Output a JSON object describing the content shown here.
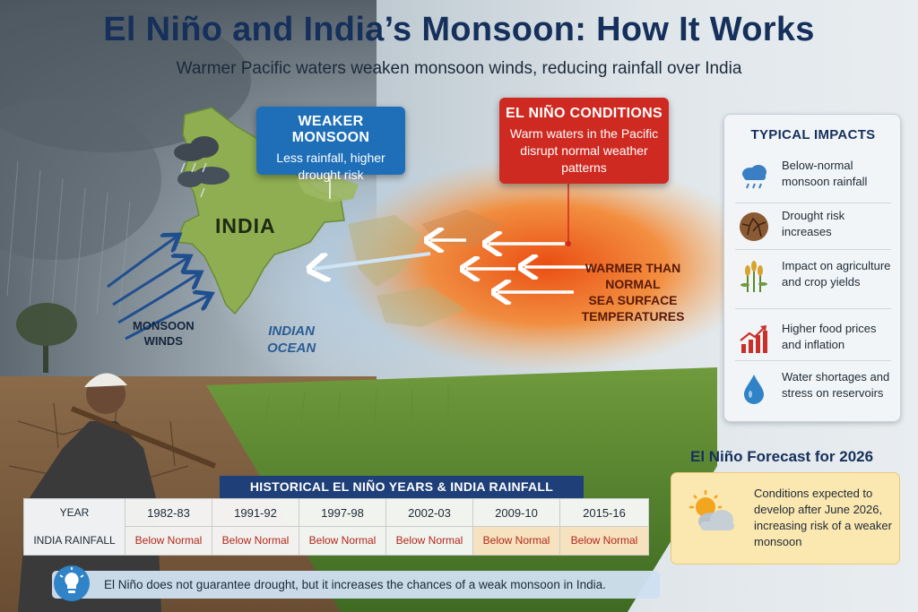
{
  "header": {
    "title": "El Niño and India’s Monsoon: How It Works",
    "subtitle": "Warmer Pacific waters weaken monsoon winds, reducing rainfall over India"
  },
  "callouts": {
    "weaker_monsoon": {
      "title": "WEAKER MONSOON",
      "body": "Less rainfall, higher drought risk",
      "color": "#1e6fb8"
    },
    "el_nino": {
      "title": "EL NIÑO CONDITIONS",
      "body": "Warm waters in the Pacific disrupt normal weather patterns",
      "color": "#cf2a21"
    }
  },
  "map_labels": {
    "india": "INDIA",
    "monsoon_winds": [
      "MONSOON",
      "WINDS"
    ],
    "ocean": [
      "INDIAN",
      "OCEAN"
    ],
    "warmer": [
      "WARMER THAN",
      "NORMAL",
      "SEA SURFACE",
      "TEMPERATURES"
    ]
  },
  "impacts": {
    "title": "TYPICAL IMPACTS",
    "items": [
      {
        "icon": "rain-cloud-icon",
        "text": "Below-normal monsoon rainfall"
      },
      {
        "icon": "cracked-earth-icon",
        "text": "Drought risk increases"
      },
      {
        "icon": "crop-icon",
        "text": "Impact on agriculture and crop yields"
      },
      {
        "icon": "rising-chart-icon",
        "text": "Higher food prices and inflation"
      },
      {
        "icon": "water-drop-icon",
        "text": "Water shortages and stress on reservoirs"
      }
    ]
  },
  "forecast": {
    "title": "El Niño Forecast for 2026",
    "icon": "sun-cloud-icon",
    "text": "Conditions expected to develop after June 2026, increasing risk of a weaker monsoon"
  },
  "history": {
    "title": "HISTORICAL EL NIÑO YEARS & INDIA RAINFALL",
    "row_labels": [
      "YEAR",
      "INDIA RAINFALL"
    ],
    "years": [
      "1982-83",
      "1991-92",
      "1997-98",
      "2002-03",
      "2009-10",
      "2015-16"
    ],
    "rainfall": [
      "Below Normal",
      "Below Normal",
      "Below Normal",
      "Below Normal",
      "Below Normal",
      "Below Normal"
    ]
  },
  "footer": {
    "icon": "lightbulb-icon",
    "tip": "El Niño does not guarantee drought, but it increases the chances of a weak monsoon in India."
  },
  "colors": {
    "title": "#16305c",
    "warm_water": "#f06a1c",
    "land": "#8fae52",
    "table_header": "#1f3f78",
    "below_normal": "#b1271a"
  }
}
